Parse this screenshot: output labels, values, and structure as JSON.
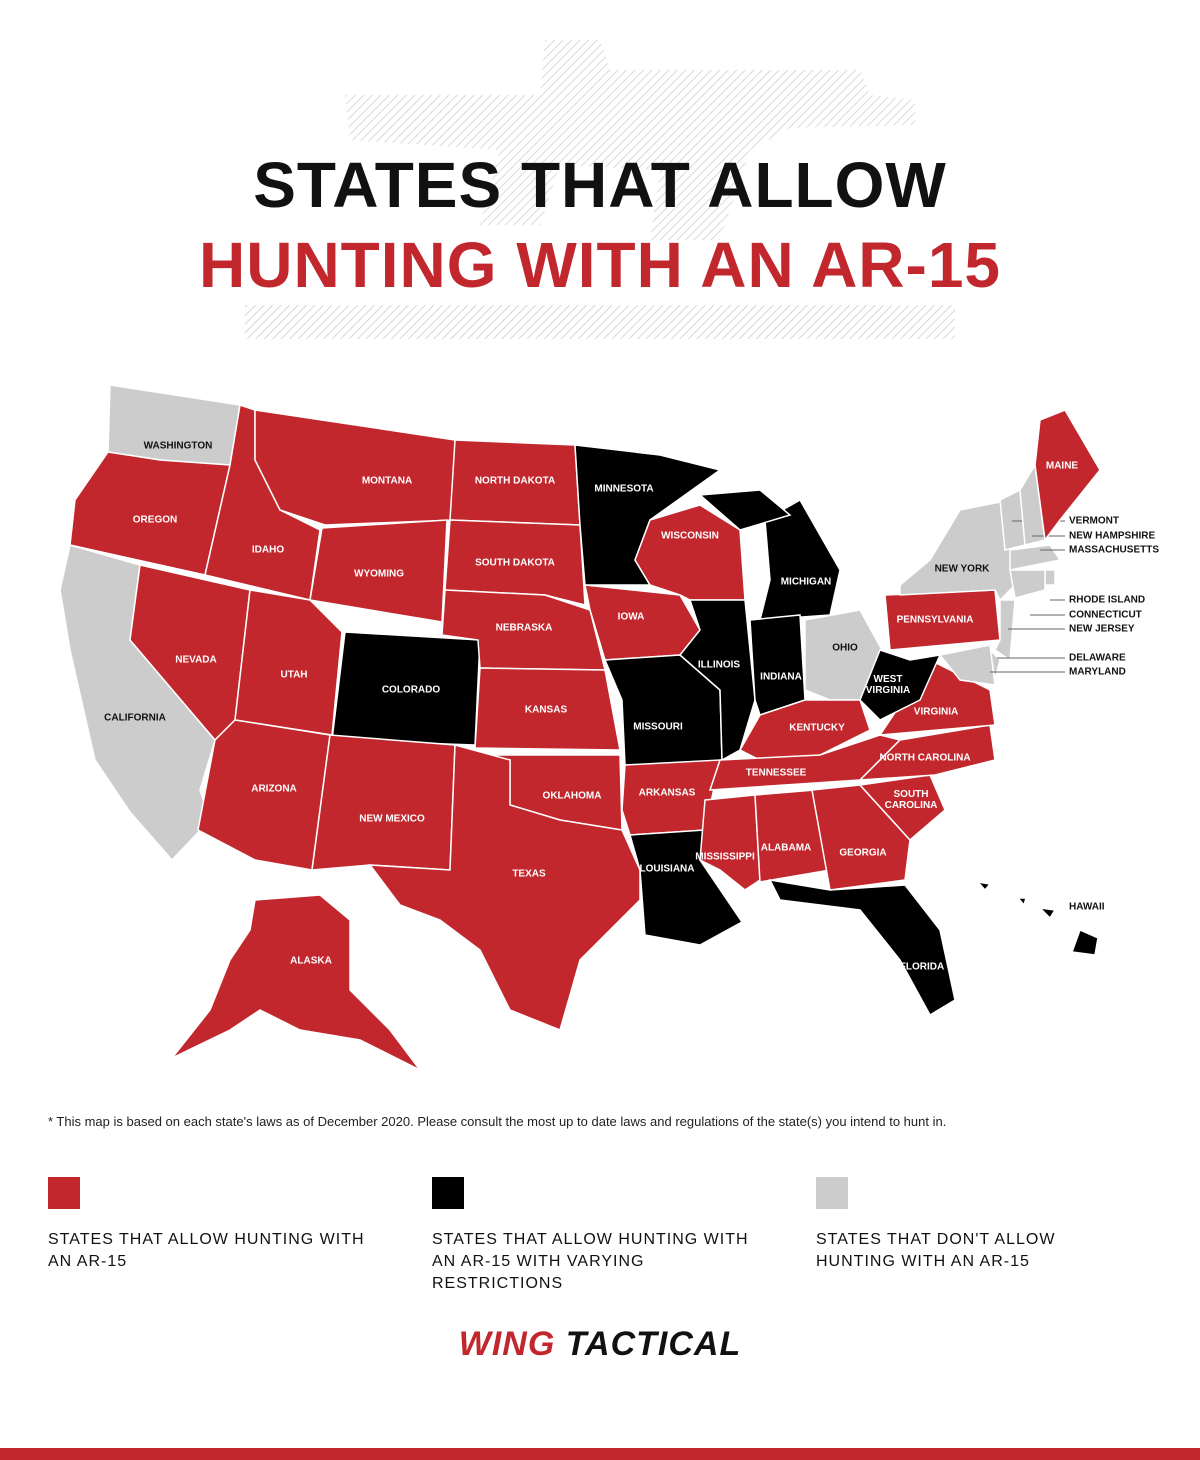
{
  "header": {
    "title_line1": "STATES THAT ALLOW",
    "title_line2": "HUNTING WITH AN AR-15"
  },
  "legend": [
    {
      "color": "#c1272d",
      "label": "STATES THAT ALLOW HUNTING WITH AN AR-15"
    },
    {
      "color": "#000000",
      "label": "STATES THAT ALLOW HUNTING WITH AN AR-15 WITH VARYING RESTRICTIONS"
    },
    {
      "color": "#cccccc",
      "label": "STATES THAT DON'T ALLOW HUNTING WITH AN AR-15"
    }
  ],
  "states": [
    {
      "label": "WASHINGTON",
      "category": 2
    },
    {
      "label": "OREGON",
      "category": 0
    },
    {
      "label": "CALIFORNIA",
      "category": 2
    },
    {
      "label": "NEVADA",
      "category": 0
    },
    {
      "label": "IDAHO",
      "category": 0
    },
    {
      "label": "MONTANA",
      "category": 0
    },
    {
      "label": "WYOMING",
      "category": 0
    },
    {
      "label": "UTAH",
      "category": 0
    },
    {
      "label": "COLORADO",
      "category": 1
    },
    {
      "label": "ARIZONA",
      "category": 0
    },
    {
      "label": "NEW MEXICO",
      "category": 0
    },
    {
      "label": "NORTH DAKOTA",
      "category": 0
    },
    {
      "label": "SOUTH DAKOTA",
      "category": 0
    },
    {
      "label": "NEBRASKA",
      "category": 0
    },
    {
      "label": "KANSAS",
      "category": 0
    },
    {
      "label": "OKLAHOMA",
      "category": 0
    },
    {
      "label": "TEXAS",
      "category": 0
    },
    {
      "label": "MINNESOTA",
      "category": 1
    },
    {
      "label": "IOWA",
      "category": 0
    },
    {
      "label": "MISSOURI",
      "category": 1
    },
    {
      "label": "ARKANSAS",
      "category": 0
    },
    {
      "label": "LOUISIANA",
      "category": 1
    },
    {
      "label": "WISCONSIN",
      "category": 0
    },
    {
      "label": "ILLINOIS",
      "category": 1
    },
    {
      "label": "MICHIGAN",
      "category": 1
    },
    {
      "label": "INDIANA",
      "category": 1
    },
    {
      "label": "OHIO",
      "category": 2
    },
    {
      "label": "KENTUCKY",
      "category": 0
    },
    {
      "label": "TENNESSEE",
      "category": 0
    },
    {
      "label": "MISSISSIPPI",
      "category": 0
    },
    {
      "label": "ALABAMA",
      "category": 0
    },
    {
      "label": "GEORGIA",
      "category": 0
    },
    {
      "label": "FLORIDA",
      "category": 1
    },
    {
      "label": "SOUTH CAROLINA",
      "category": 0
    },
    {
      "label": "NORTH CAROLINA",
      "category": 0
    },
    {
      "label": "VIRGINIA",
      "category": 0
    },
    {
      "label": "WEST VIRGINIA",
      "category": 1
    },
    {
      "label": "PENNSYLVANIA",
      "category": 0
    },
    {
      "label": "NEW YORK",
      "category": 2
    },
    {
      "label": "VERMONT",
      "category": 2
    },
    {
      "label": "NEW HAMPSHIRE",
      "category": 2
    },
    {
      "label": "MAINE",
      "category": 0
    },
    {
      "label": "MASSACHUSETTS",
      "category": 2
    },
    {
      "label": "RHODE ISLAND",
      "category": 2
    },
    {
      "label": "CONNECTICUT",
      "category": 2
    },
    {
      "label": "NEW JERSEY",
      "category": 2
    },
    {
      "label": "DELAWARE",
      "category": 2
    },
    {
      "label": "MARYLAND",
      "category": 2
    },
    {
      "label": "ALASKA",
      "category": 0
    },
    {
      "label": "HAWAII",
      "category": 1
    }
  ],
  "note": "* This map is based on each state's laws as of December 2020. Please consult the most up to date laws and regulations of the state(s) you intend to hunt in.",
  "logo": {
    "part1": "WING",
    "part2": "TACTICAL"
  }
}
